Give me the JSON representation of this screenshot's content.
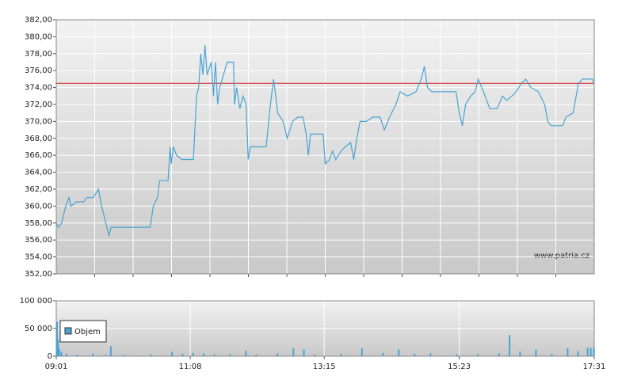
{
  "chart_data": [
    {
      "type": "line",
      "source": "www.patria.cz",
      "color": "#4aa3d3",
      "reference_line": {
        "value": 374.5,
        "color": "#cc2222"
      },
      "x": [
        "09:01",
        "09:03",
        "09:06",
        "09:10",
        "09:13",
        "09:15",
        "09:20",
        "09:27",
        "09:30",
        "09:36",
        "09:41",
        "09:44",
        "09:48",
        "09:51",
        "09:53",
        "10:00",
        "10:10",
        "10:30",
        "10:33",
        "10:37",
        "10:39",
        "10:47",
        "10:49",
        "10:50",
        "10:52",
        "10:55",
        "11:00",
        "11:11",
        "11:14",
        "11:16",
        "11:18",
        "11:20",
        "11:22",
        "11:24",
        "11:28",
        "11:30",
        "11:32",
        "11:34",
        "11:36",
        "11:43",
        "11:49",
        "11:50",
        "11:52",
        "11:55",
        "11:58",
        "12:01",
        "12:03",
        "12:05",
        "12:20",
        "12:24",
        "12:27",
        "12:31",
        "12:36",
        "12:40",
        "12:45",
        "12:50",
        "12:55",
        "12:58",
        "13:00",
        "13:02",
        "13:14",
        "13:16",
        "13:20",
        "13:23",
        "13:26",
        "13:31",
        "13:35",
        "13:40",
        "13:43",
        "13:46",
        "13:49",
        "13:55",
        "14:01",
        "14:08",
        "14:12",
        "14:17",
        "14:23",
        "14:27",
        "14:34",
        "14:42",
        "14:47",
        "14:50",
        "14:53",
        "14:57",
        "15:20",
        "15:23",
        "15:26",
        "15:29",
        "15:34",
        "15:38",
        "15:41",
        "15:46",
        "15:52",
        "15:59",
        "16:04",
        "16:08",
        "16:13",
        "16:17",
        "16:22",
        "16:26",
        "16:31",
        "16:38",
        "16:44",
        "16:47",
        "16:50",
        "17:01",
        "17:04",
        "17:11",
        "17:16",
        "17:20",
        "17:29",
        "17:31"
      ],
      "values": [
        358,
        357.5,
        358,
        360,
        361,
        360,
        360.5,
        360.5,
        361,
        361,
        362,
        360,
        358,
        356.5,
        357.5,
        357.5,
        357.5,
        357.5,
        360,
        361,
        363,
        363,
        367,
        365,
        367,
        366,
        365.5,
        365.5,
        373,
        374,
        378,
        375.5,
        379,
        375.5,
        377,
        373,
        377,
        372,
        374,
        377,
        377,
        372,
        374,
        371.5,
        373,
        372,
        365.5,
        367,
        367,
        372,
        375,
        371,
        370,
        368,
        370,
        370.5,
        370.5,
        368.5,
        366,
        368.5,
        368.5,
        365,
        365.5,
        366.5,
        365.5,
        366.5,
        367,
        367.5,
        365.5,
        368,
        370,
        370,
        370.5,
        370.5,
        369,
        370.5,
        372,
        373.5,
        373,
        373.5,
        375,
        376.5,
        374,
        373.5,
        373.5,
        371,
        369.5,
        372,
        373,
        373.5,
        375,
        373.5,
        371.5,
        371.5,
        373,
        372.5,
        373,
        373.5,
        374.5,
        375,
        374,
        373.5,
        372,
        370,
        369.5,
        369.5,
        370.5,
        371,
        374.5,
        375,
        375,
        374.5
      ],
      "xlim": [
        "09:01",
        "17:31"
      ],
      "ylim": [
        352,
        382
      ],
      "yticks": [
        {
          "value": 352,
          "label": "352,00"
        },
        {
          "value": 354,
          "label": "354,00"
        },
        {
          "value": 356,
          "label": "356,00"
        },
        {
          "value": 358,
          "label": "358,00"
        },
        {
          "value": 360,
          "label": "360,00"
        },
        {
          "value": 362,
          "label": "362,00"
        },
        {
          "value": 364,
          "label": "364,00"
        },
        {
          "value": 366,
          "label": "366,00"
        },
        {
          "value": 368,
          "label": "368,00"
        },
        {
          "value": 370,
          "label": "370,00"
        },
        {
          "value": 372,
          "label": "372,00"
        },
        {
          "value": 374,
          "label": "374,00"
        },
        {
          "value": 376,
          "label": "376,00"
        },
        {
          "value": 378,
          "label": "378,00"
        },
        {
          "value": 380,
          "label": "380,00"
        },
        {
          "value": 382,
          "label": "382,00"
        }
      ],
      "grid": true
    },
    {
      "type": "bar",
      "x": [
        "09:01",
        "09:02",
        "09:03",
        "09:05",
        "09:10",
        "09:20",
        "09:35",
        "09:47",
        "09:52",
        "10:05",
        "10:30",
        "10:50",
        "11:00",
        "11:10",
        "11:20",
        "11:30",
        "11:45",
        "12:00",
        "12:10",
        "12:30",
        "12:45",
        "12:55",
        "13:05",
        "13:30",
        "13:50",
        "14:10",
        "14:25",
        "14:40",
        "14:55",
        "15:20",
        "15:40",
        "16:00",
        "16:10",
        "16:20",
        "16:35",
        "16:50",
        "17:05",
        "17:15",
        "17:24",
        "17:27",
        "17:30"
      ],
      "series": [
        {
          "name": "Objem",
          "color": "#4aa3d3",
          "values": [
            62000,
            30000,
            14000,
            8000,
            4000,
            3000,
            5000,
            2000,
            18000,
            2000,
            3000,
            8000,
            4000,
            6000,
            5000,
            3000,
            4000,
            10000,
            3000,
            5000,
            14000,
            12000,
            3000,
            4000,
            14000,
            6000,
            12000,
            4000,
            5000,
            3000,
            4000,
            5000,
            38000,
            8000,
            12000,
            4000,
            14000,
            9000,
            15000,
            15000,
            15000
          ]
        }
      ],
      "xlim": [
        "09:01",
        "17:31"
      ],
      "xticks": [
        "09:01",
        "11:08",
        "13:15",
        "15:23",
        "17:31"
      ],
      "ylim": [
        0,
        100000
      ],
      "yticks": [
        0,
        {
          "value": 50000,
          "label": "50 000"
        },
        {
          "value": 100000,
          "label": "100 000"
        }
      ],
      "grid": true
    }
  ]
}
